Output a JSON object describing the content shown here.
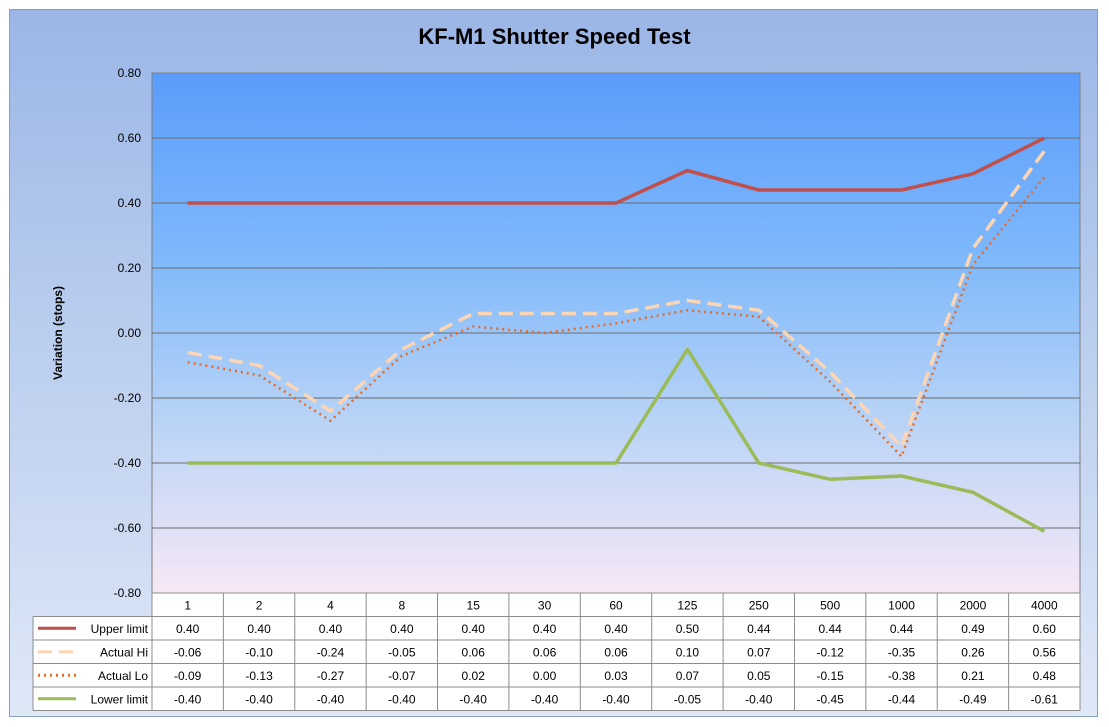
{
  "chart_data": {
    "type": "line",
    "title": "KF-M1 Shutter Speed Test",
    "xlabel": "",
    "ylabel": "Variation (stops)",
    "ylim": [
      -0.8,
      0.8
    ],
    "yticks": [
      "0.80",
      "0.60",
      "0.40",
      "0.20",
      "0.00",
      "-0.20",
      "-0.40",
      "-0.60",
      "-0.80"
    ],
    "grid": true,
    "legend": "data-table-left",
    "categories": [
      "1",
      "2",
      "4",
      "8",
      "15",
      "30",
      "60",
      "125",
      "250",
      "500",
      "1000",
      "2000",
      "4000"
    ],
    "series": [
      {
        "name": "Upper limit",
        "style": "solid",
        "color": "#c0504d",
        "values": [
          0.4,
          0.4,
          0.4,
          0.4,
          0.4,
          0.4,
          0.4,
          0.5,
          0.44,
          0.44,
          0.44,
          0.49,
          0.6
        ],
        "labels": [
          "0.40",
          "0.40",
          "0.40",
          "0.40",
          "0.40",
          "0.40",
          "0.40",
          "0.50",
          "0.44",
          "0.44",
          "0.44",
          "0.49",
          "0.60"
        ]
      },
      {
        "name": "Actual Hi",
        "style": "dashed",
        "color": "#fcd5b4",
        "values": [
          -0.06,
          -0.1,
          -0.24,
          -0.05,
          0.06,
          0.06,
          0.06,
          0.1,
          0.07,
          -0.12,
          -0.35,
          0.26,
          0.56
        ],
        "labels": [
          "-0.06",
          "-0.10",
          "-0.24",
          "-0.05",
          "0.06",
          "0.06",
          "0.06",
          "0.10",
          "0.07",
          "-0.12",
          "-0.35",
          "0.26",
          "0.56"
        ]
      },
      {
        "name": "Actual Lo",
        "style": "dotted",
        "color": "#e46c2a",
        "values": [
          -0.09,
          -0.13,
          -0.27,
          -0.07,
          0.02,
          0.0,
          0.03,
          0.07,
          0.05,
          -0.15,
          -0.38,
          0.21,
          0.48
        ],
        "labels": [
          "-0.09",
          "-0.13",
          "-0.27",
          "-0.07",
          "0.02",
          "0.00",
          "0.03",
          "0.07",
          "0.05",
          "-0.15",
          "-0.38",
          "0.21",
          "0.48"
        ]
      },
      {
        "name": "Lower limit",
        "style": "solid",
        "color": "#9bbb59",
        "values": [
          -0.4,
          -0.4,
          -0.4,
          -0.4,
          -0.4,
          -0.4,
          -0.4,
          -0.05,
          -0.4,
          -0.45,
          -0.44,
          -0.49,
          -0.61
        ],
        "labels": [
          "-0.40",
          "-0.40",
          "-0.40",
          "-0.40",
          "-0.40",
          "-0.40",
          "-0.40",
          "-0.05",
          "-0.40",
          "-0.45",
          "-0.44",
          "-0.49",
          "-0.61"
        ]
      }
    ]
  }
}
